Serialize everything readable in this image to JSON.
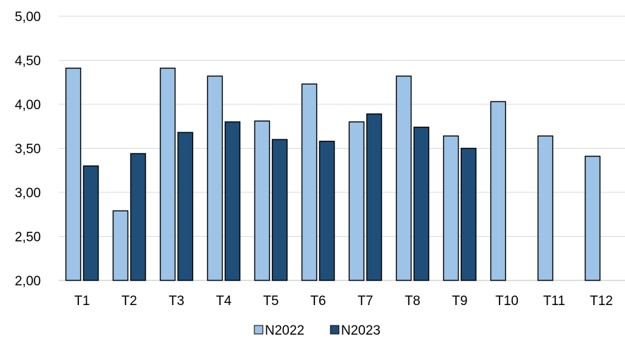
{
  "chart_data": {
    "type": "bar",
    "categories": [
      "T1",
      "T2",
      "T3",
      "T4",
      "T5",
      "T6",
      "T7",
      "T8",
      "T9",
      "T10",
      "T11",
      "T12"
    ],
    "series": [
      {
        "name": "N2022",
        "color": "#9DC3E6",
        "values": [
          4.41,
          2.79,
          4.41,
          4.32,
          3.81,
          4.23,
          3.8,
          4.32,
          3.64,
          4.03,
          3.64,
          3.41
        ]
      },
      {
        "name": "N2023",
        "color": "#1F4E79",
        "values": [
          3.3,
          3.44,
          3.68,
          3.8,
          3.6,
          3.58,
          3.89,
          3.74,
          3.5,
          null,
          null,
          null
        ]
      }
    ],
    "ylim": [
      2.0,
      5.0
    ],
    "yticks": [
      "2,00",
      "2,50",
      "3,00",
      "3,50",
      "4,00",
      "4,50",
      "5,00"
    ],
    "grid": true,
    "legend_position": "bottom"
  }
}
